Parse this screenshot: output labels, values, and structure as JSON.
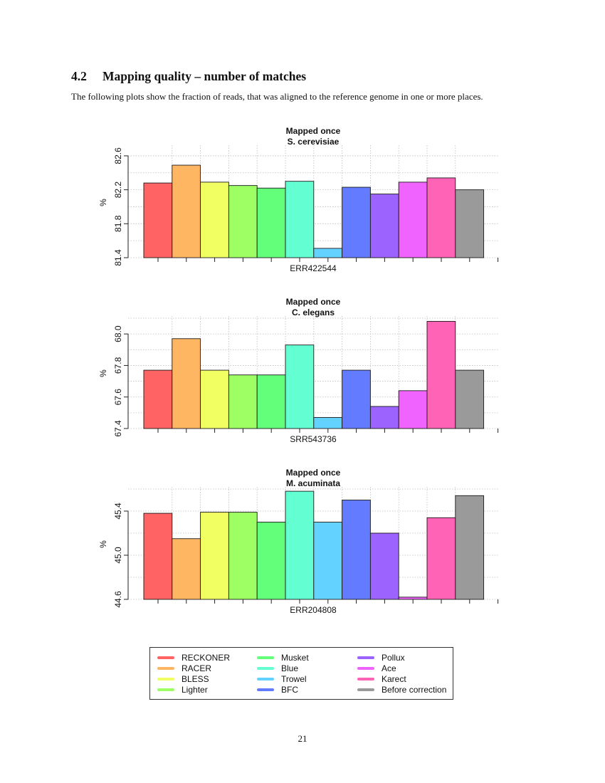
{
  "section": {
    "number": "4.2",
    "title": "Mapping quality – number of matches"
  },
  "intro": "The following plots show the fraction of reads, that was aligned to the reference genome in one or more places.",
  "page_number": "21",
  "colors": [
    "#ff6363",
    "#ffb663",
    "#f1ff63",
    "#9dff63",
    "#63ff7b",
    "#63ffd2",
    "#63d2ff",
    "#637bff",
    "#9d63ff",
    "#f163ff",
    "#ff63b6",
    "#9a9a9a"
  ],
  "chart_data": [
    {
      "type": "bar",
      "title": "Mapped once",
      "subtitle": "S. cerevisiae",
      "xlabel": "ERR422544",
      "ylabel": "%",
      "ylim": [
        81.4,
        82.7
      ],
      "yticks": [
        81.4,
        81.8,
        82.2,
        82.6
      ],
      "ytick_labels": [
        "81.4",
        "81.8",
        "82.2",
        "82.6"
      ],
      "grid": true,
      "categories": [
        "RECKONER",
        "RACER",
        "BLESS",
        "Lighter",
        "Musket",
        "Blue",
        "Trowel",
        "BFC",
        "Pollux",
        "Ace",
        "Karect",
        "Before correction"
      ],
      "values": [
        82.28,
        82.49,
        82.29,
        82.25,
        82.22,
        82.3,
        81.51,
        82.23,
        82.15,
        82.29,
        82.34,
        82.2
      ]
    },
    {
      "type": "bar",
      "title": "Mapped once",
      "subtitle": "C. elegans",
      "xlabel": "SRR543736",
      "ylabel": "%",
      "ylim": [
        67.4,
        68.1
      ],
      "yticks": [
        67.4,
        67.6,
        67.8,
        68.0
      ],
      "ytick_labels": [
        "67.4",
        "67.6",
        "67.8",
        "68.0"
      ],
      "grid": true,
      "categories": [
        "RECKONER",
        "RACER",
        "BLESS",
        "Lighter",
        "Musket",
        "Blue",
        "Trowel",
        "BFC",
        "Pollux",
        "Ace",
        "Karect",
        "Before correction"
      ],
      "values": [
        67.77,
        67.97,
        67.77,
        67.74,
        67.74,
        67.93,
        67.47,
        67.77,
        67.54,
        67.64,
        68.08,
        67.77
      ]
    },
    {
      "type": "bar",
      "title": "Mapped once",
      "subtitle": "M. acuminata",
      "xlabel": "ERR204808",
      "ylabel": "%",
      "ylim": [
        44.6,
        45.6
      ],
      "yticks": [
        44.6,
        45.0,
        45.4
      ],
      "ytick_labels": [
        "44.6",
        "45.0",
        "45.4"
      ],
      "grid": true,
      "categories": [
        "RECKONER",
        "RACER",
        "BLESS",
        "Lighter",
        "Musket",
        "Blue",
        "Trowel",
        "BFC",
        "Pollux",
        "Ace",
        "Karect",
        "Before correction"
      ],
      "values": [
        45.38,
        45.15,
        45.39,
        45.39,
        45.3,
        45.58,
        45.3,
        45.5,
        45.2,
        44.62,
        45.34,
        45.54
      ]
    }
  ],
  "legend": {
    "columns": [
      [
        "RECKONER",
        "RACER",
        "BLESS",
        "Lighter"
      ],
      [
        "Musket",
        "Blue",
        "Trowel",
        "BFC"
      ],
      [
        "Pollux",
        "Ace",
        "Karect",
        "Before correction"
      ]
    ]
  }
}
